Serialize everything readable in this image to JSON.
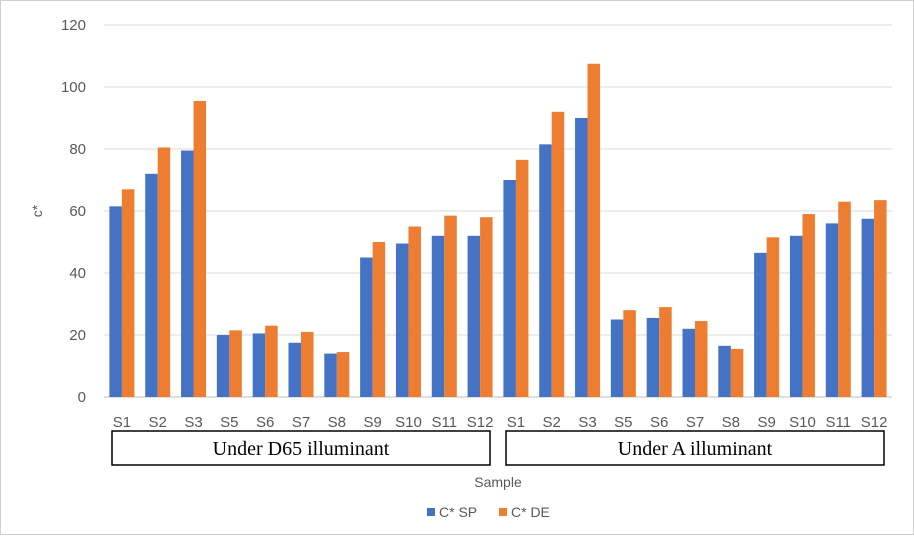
{
  "chart_data": {
    "type": "bar",
    "xlabel": "Sample",
    "ylabel": "c*",
    "ylim": [
      0,
      120
    ],
    "yticks": [
      0,
      20,
      40,
      60,
      80,
      100,
      120
    ],
    "grid": true,
    "legend": "bottom",
    "categories": [
      "S1",
      "S2",
      "S3",
      "S5",
      "S6",
      "S7",
      "S8",
      "S9",
      "S10",
      "S11",
      "S12",
      "S1",
      "S2",
      "S3",
      "S5",
      "S6",
      "S7",
      "S8",
      "S9",
      "S10",
      "S11",
      "S12"
    ],
    "groups": [
      {
        "label": "Under D65 illuminant",
        "start": 0,
        "end": 10
      },
      {
        "label": "Under A illuminant",
        "start": 11,
        "end": 21
      }
    ],
    "series": [
      {
        "name": "C* SP",
        "color": "#4472C4",
        "values": [
          61.5,
          72.0,
          79.5,
          20.0,
          20.5,
          17.5,
          14.0,
          45.0,
          49.5,
          52.0,
          52.0,
          70.0,
          81.5,
          90.0,
          25.0,
          25.5,
          22.0,
          16.5,
          46.5,
          52.0,
          56.0,
          57.5
        ]
      },
      {
        "name": "C* DE",
        "color": "#ED7D31",
        "values": [
          67.0,
          80.5,
          95.5,
          21.5,
          23.0,
          21.0,
          14.5,
          50.0,
          55.0,
          58.5,
          58.0,
          76.5,
          92.0,
          107.5,
          28.0,
          29.0,
          24.5,
          15.5,
          51.5,
          59.0,
          63.0,
          63.5
        ]
      }
    ]
  }
}
